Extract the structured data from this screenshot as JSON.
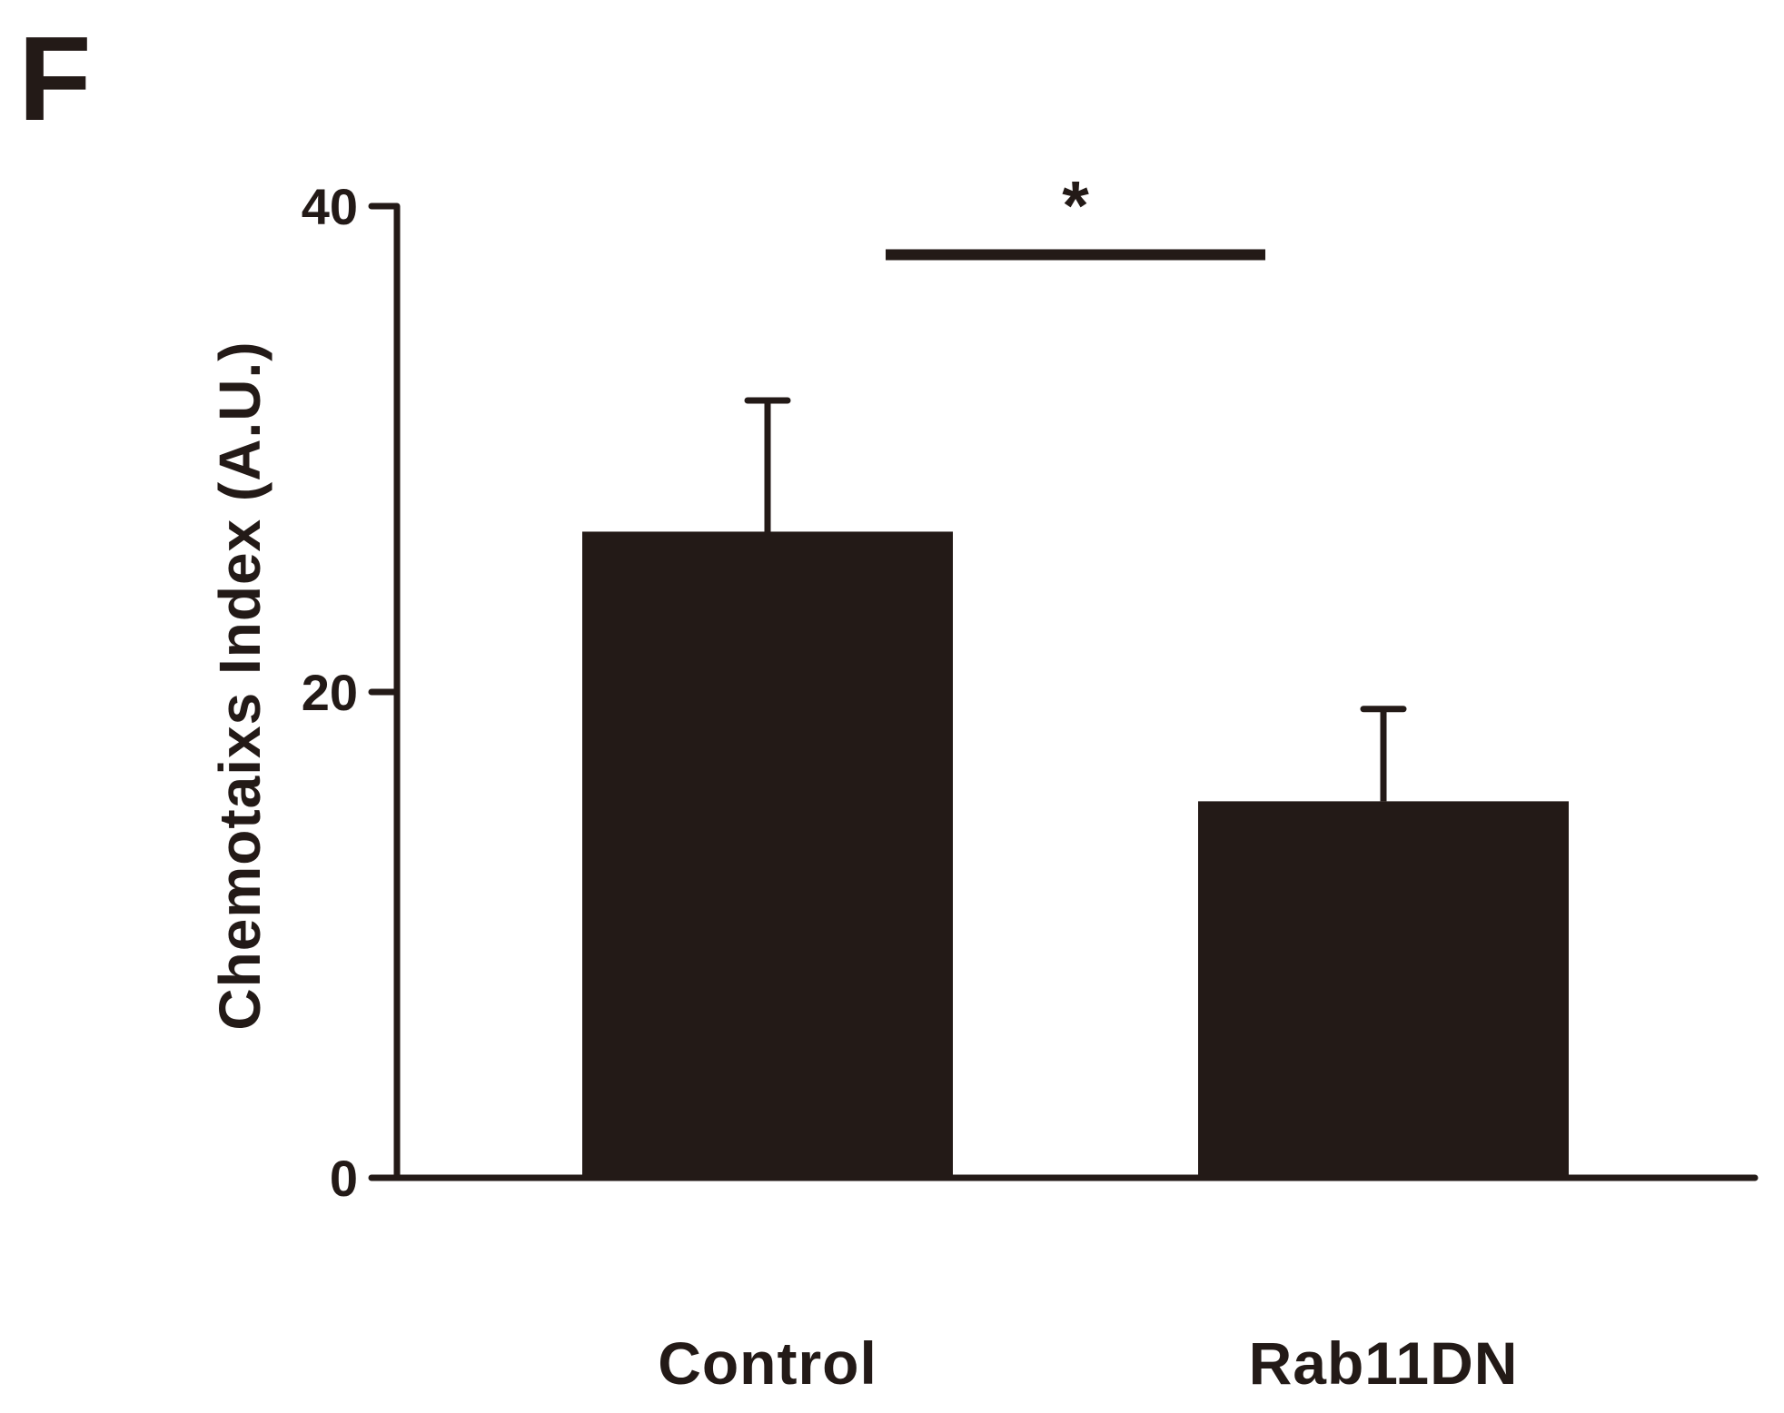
{
  "panel_label": "F",
  "colors": {
    "bar_fill": "#231a17",
    "axis": "#231a17",
    "text": "#231a17",
    "background": "#ffffff"
  },
  "chart_data": {
    "type": "bar",
    "title": "",
    "xlabel": "",
    "ylabel": "Chemotaixs Index (A.U.)",
    "categories": [
      "Control",
      "Rab11DN"
    ],
    "values": [
      26.6,
      15.5
    ],
    "error_upper": [
      32.0,
      19.3
    ],
    "ylim": [
      0,
      40
    ],
    "yticks": [
      0,
      20,
      40
    ],
    "grid": false,
    "legend": "none",
    "significance": {
      "from_category": "Control",
      "to_category": "Rab11DN",
      "y_value": 38.0,
      "label": "*"
    }
  }
}
